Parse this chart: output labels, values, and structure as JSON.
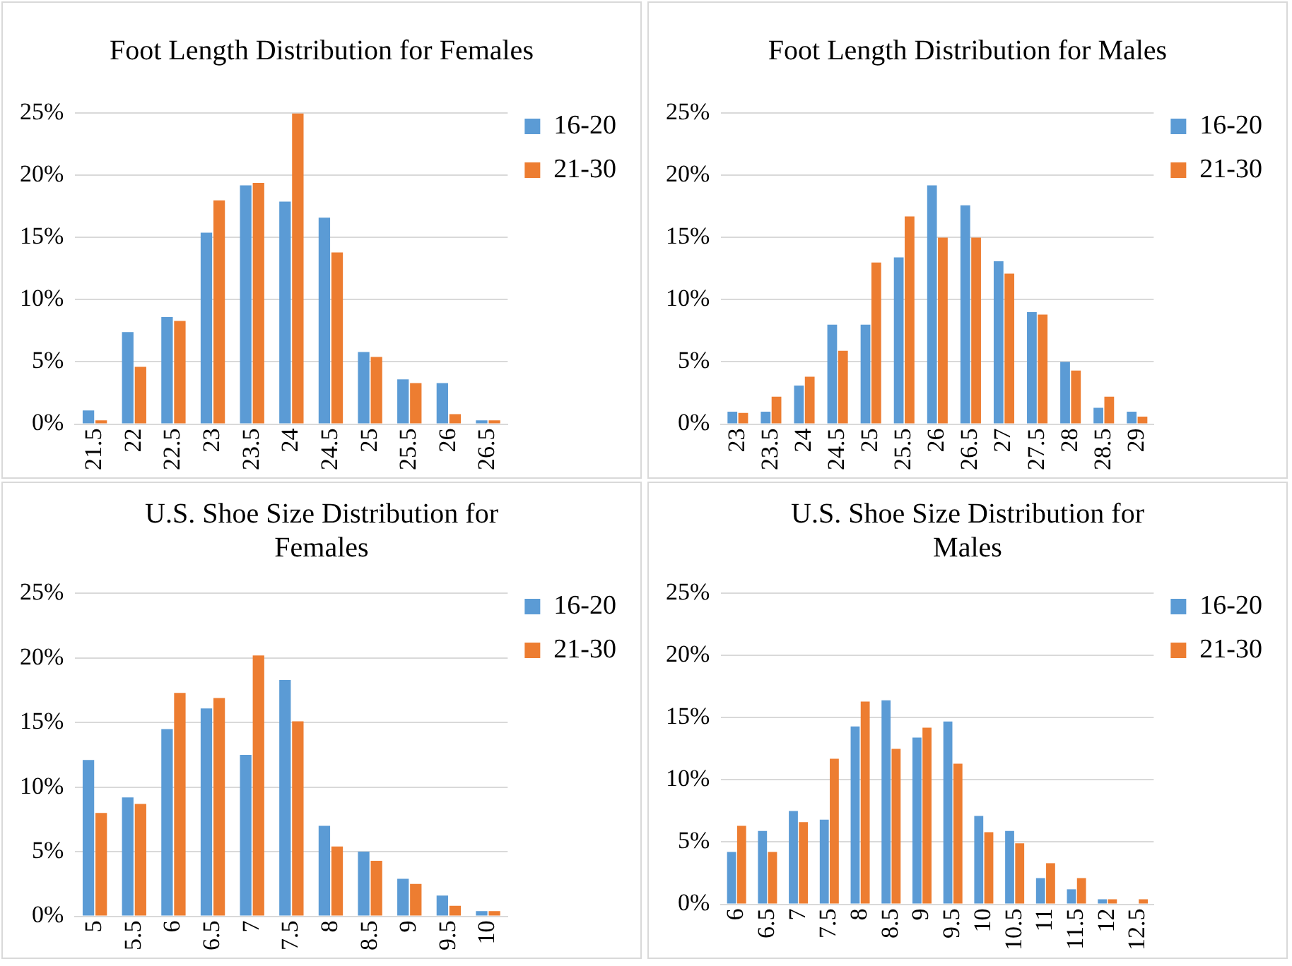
{
  "chart_data": [
    {
      "type": "bar",
      "title": "Foot Length Distribution for Females",
      "categories": [
        "21.5",
        "22",
        "22.5",
        "23",
        "23.5",
        "24",
        "24.5",
        "25",
        "25.5",
        "26",
        "26.5"
      ],
      "series": [
        {
          "name": "16-20",
          "color": "#5b9bd5",
          "values": [
            1.1,
            7.4,
            8.6,
            15.4,
            19.2,
            17.9,
            16.6,
            5.8,
            3.6,
            3.3,
            0.3
          ]
        },
        {
          "name": "21-30",
          "color": "#ed7d31",
          "values": [
            0.3,
            4.6,
            8.3,
            18.0,
            19.4,
            25.0,
            13.8,
            5.4,
            3.3,
            0.8,
            0.3
          ]
        }
      ],
      "ylim": [
        0,
        25
      ],
      "yticks": [
        {
          "value": 0,
          "label": "0%"
        },
        {
          "value": 5,
          "label": "5%"
        },
        {
          "value": 10,
          "label": "10%"
        },
        {
          "value": 15,
          "label": "15%"
        },
        {
          "value": 20,
          "label": "20%"
        },
        {
          "value": 25,
          "label": "25%"
        }
      ],
      "grid": "y",
      "legend": "top right"
    },
    {
      "type": "bar",
      "title": "Foot Length Distribution for Males",
      "categories": [
        "23",
        "23.5",
        "24",
        "24.5",
        "25",
        "25.5",
        "26",
        "26.5",
        "27",
        "27.5",
        "28",
        "28.5",
        "29"
      ],
      "series": [
        {
          "name": "16-20",
          "color": "#5b9bd5",
          "values": [
            1.0,
            1.0,
            3.1,
            8.0,
            8.0,
            13.4,
            19.2,
            17.6,
            13.1,
            9.0,
            5.0,
            1.3,
            1.0
          ]
        },
        {
          "name": "21-30",
          "color": "#ed7d31",
          "values": [
            0.9,
            2.2,
            3.8,
            5.9,
            13.0,
            16.7,
            15.0,
            15.0,
            12.1,
            8.8,
            4.3,
            2.2,
            0.6
          ]
        }
      ],
      "ylim": [
        0,
        25
      ],
      "yticks": [
        {
          "value": 0,
          "label": "0%"
        },
        {
          "value": 5,
          "label": "5%"
        },
        {
          "value": 10,
          "label": "10%"
        },
        {
          "value": 15,
          "label": "15%"
        },
        {
          "value": 20,
          "label": "20%"
        },
        {
          "value": 25,
          "label": "25%"
        }
      ],
      "grid": "y",
      "legend": "top right"
    },
    {
      "type": "bar",
      "title": "U.S. Shoe Size Distribution for Females",
      "categories": [
        "5",
        "5.5",
        "6",
        "6.5",
        "7",
        "7.5",
        "8",
        "8.5",
        "9",
        "9.5",
        "10"
      ],
      "series": [
        {
          "name": "16-20",
          "color": "#5b9bd5",
          "values": [
            12.1,
            9.2,
            14.5,
            16.1,
            12.5,
            18.3,
            7.0,
            5.0,
            2.9,
            1.6,
            0.4
          ]
        },
        {
          "name": "21-30",
          "color": "#ed7d31",
          "values": [
            8.0,
            8.7,
            17.3,
            16.9,
            20.2,
            15.1,
            5.4,
            4.3,
            2.5,
            0.8,
            0.4
          ]
        }
      ],
      "ylim": [
        0,
        25
      ],
      "yticks": [
        {
          "value": 0,
          "label": "0%"
        },
        {
          "value": 5,
          "label": "5%"
        },
        {
          "value": 10,
          "label": "10%"
        },
        {
          "value": 15,
          "label": "15%"
        },
        {
          "value": 20,
          "label": "20%"
        },
        {
          "value": 25,
          "label": "25%"
        }
      ],
      "grid": "y",
      "legend": "top right"
    },
    {
      "type": "bar",
      "title": "U.S. Shoe Size Distribution for Males",
      "categories": [
        "6",
        "6.5",
        "7",
        "7.5",
        "8",
        "8.5",
        "9",
        "9.5",
        "10",
        "10.5",
        "11",
        "11.5",
        "12",
        "12.5"
      ],
      "series": [
        {
          "name": "16-20",
          "color": "#5b9bd5",
          "values": [
            4.2,
            5.9,
            7.5,
            6.8,
            14.3,
            16.4,
            13.4,
            14.7,
            7.1,
            5.9,
            2.1,
            1.2,
            0.4,
            null
          ]
        },
        {
          "name": "21-30",
          "color": "#ed7d31",
          "values": [
            6.3,
            4.2,
            6.6,
            11.7,
            16.3,
            12.5,
            14.2,
            11.3,
            5.8,
            4.9,
            3.3,
            2.1,
            0.4,
            0.4
          ]
        }
      ],
      "ylim": [
        0,
        25
      ],
      "yticks": [
        {
          "value": 0,
          "label": "0%"
        },
        {
          "value": 5,
          "label": "5%"
        },
        {
          "value": 10,
          "label": "10%"
        },
        {
          "value": 15,
          "label": "15%"
        },
        {
          "value": 20,
          "label": "20%"
        },
        {
          "value": 25,
          "label": "25%"
        }
      ],
      "grid": "y",
      "legend": "top right"
    }
  ]
}
